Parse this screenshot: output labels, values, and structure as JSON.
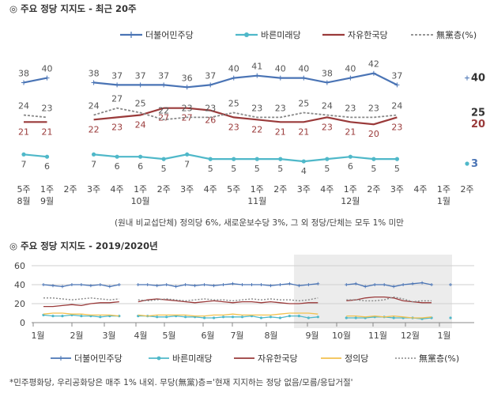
{
  "chart_data": [
    {
      "type": "line",
      "title": "주요 정당 지지도 - 최근 20주",
      "categories": [
        "5주 8월",
        "1주 9월",
        "2주",
        "3주",
        "4주",
        "1주 10월",
        "2주",
        "3주",
        "4주",
        "5주",
        "1주 11월",
        "2주",
        "3주",
        "4주",
        "1주 12월",
        "2주",
        "3주",
        "4주",
        "1주 1월",
        "2주"
      ],
      "x_labels_top": [
        "5주",
        "1주",
        "2주",
        "3주",
        "4주",
        "1주",
        "2주",
        "3주",
        "4주",
        "5주",
        "1주",
        "2주",
        "3주",
        "4주",
        "1주",
        "2주",
        "3주",
        "4주",
        "1주",
        "2주"
      ],
      "month_labels": [
        {
          "index": 0,
          "text": "8월"
        },
        {
          "index": 1,
          "text": "9월"
        },
        {
          "index": 5,
          "text": "10월"
        },
        {
          "index": 10,
          "text": "11월"
        },
        {
          "index": 14,
          "text": "12월"
        },
        {
          "index": 18,
          "text": "1월"
        }
      ],
      "series": [
        {
          "name": "더불어민주당",
          "color": "#4a74b5",
          "values": [
            38,
            40,
            null,
            38,
            37,
            37,
            37,
            36,
            37,
            40,
            41,
            40,
            40,
            38,
            40,
            42,
            37,
            null,
            null,
            40
          ]
        },
        {
          "name": "바른미래당",
          "color": "#4fb8c9",
          "values": [
            7,
            6,
            null,
            7,
            6,
            6,
            5,
            7,
            5,
            5,
            5,
            5,
            4,
            5,
            6,
            5,
            5,
            null,
            null,
            3
          ]
        },
        {
          "name": "자유한국당",
          "color": "#9a3a3a",
          "values": [
            21,
            21,
            null,
            22,
            23,
            24,
            27,
            27,
            26,
            23,
            22,
            21,
            21,
            23,
            21,
            20,
            23,
            null,
            null,
            20
          ]
        },
        {
          "name": "無黨층(%)",
          "color": "#888888",
          "dashed": true,
          "values": [
            24,
            23,
            null,
            24,
            27,
            25,
            22,
            23,
            23,
            25,
            23,
            23,
            25,
            24,
            23,
            23,
            24,
            null,
            null,
            25
          ]
        }
      ],
      "footnote": "(원내 비교섭단체) 정의당 6%, 새로운보수당 3%, 그 외 정당/단체는 모두 1% 미만"
    },
    {
      "type": "line",
      "title": "주요 정당 지지도 - 2019/2020년",
      "ylim": [
        0,
        60
      ],
      "yticks": [
        0,
        20,
        40,
        60
      ],
      "month_labels": [
        "1월",
        "2월",
        "3월",
        "4월",
        "5월",
        "6월",
        "7월",
        "8월",
        "9월",
        "10월",
        "11월",
        "12월",
        "1월"
      ],
      "highlight": "9월 - 1월 shaded",
      "series": [
        {
          "name": "더불어민주당",
          "color": "#4a74b5",
          "values": [
            40,
            39,
            38,
            40,
            40,
            39,
            40,
            38,
            40,
            39,
            40,
            40,
            39,
            40,
            38,
            40,
            39,
            40,
            39,
            40,
            41,
            40,
            40,
            40,
            39,
            40,
            41,
            39,
            40,
            41,
            40,
            40,
            40,
            41,
            38,
            40,
            40,
            38,
            40,
            41,
            42,
            40,
            38,
            40
          ]
        },
        {
          "name": "바른미래당",
          "color": "#4fb8c9",
          "values": [
            8,
            7,
            7,
            8,
            7,
            7,
            6,
            7,
            7,
            6,
            7,
            7,
            6,
            6,
            7,
            6,
            6,
            5,
            5,
            6,
            6,
            6,
            7,
            5,
            6,
            5,
            7,
            7,
            5,
            6,
            6,
            6,
            5,
            5,
            5,
            6,
            6,
            5,
            5,
            5,
            4,
            5,
            6,
            5
          ]
        },
        {
          "name": "자유한국당",
          "color": "#9a3a3a",
          "values": [
            17,
            17,
            18,
            19,
            18,
            20,
            21,
            21,
            22,
            23,
            22,
            24,
            25,
            24,
            23,
            22,
            21,
            22,
            23,
            22,
            21,
            22,
            22,
            21,
            22,
            21,
            20,
            20,
            21,
            21,
            22,
            23,
            23,
            24,
            26,
            27,
            27,
            26,
            23,
            22,
            21,
            21,
            20,
            21
          ]
        },
        {
          "name": "정의당",
          "color": "#f2c14e",
          "values": [
            9,
            10,
            10,
            9,
            9,
            8,
            8,
            8,
            7,
            7,
            8,
            7,
            8,
            8,
            8,
            8,
            7,
            7,
            8,
            8,
            9,
            8,
            8,
            8,
            8,
            9,
            10,
            10,
            10,
            9,
            6,
            6,
            7,
            7,
            6,
            7,
            6,
            7,
            6,
            5,
            5,
            6,
            4,
            6
          ]
        },
        {
          "name": "無黨층(%)",
          "color": "#888888",
          "dashed": true,
          "values": [
            26,
            26,
            25,
            24,
            25,
            26,
            25,
            24,
            25,
            24,
            24,
            23,
            24,
            25,
            24,
            23,
            24,
            25,
            24,
            24,
            23,
            24,
            25,
            24,
            25,
            24,
            24,
            23,
            24,
            26,
            26,
            25,
            24,
            24,
            23,
            23,
            24,
            27,
            25,
            22,
            23,
            23,
            25,
            24
          ]
        }
      ],
      "footnote": "*민주평화당, 우리공화당은 매주 1% 내외. 무당(無黨)층='현재 지지하는 정당 없음/모름/응답거절'"
    }
  ]
}
